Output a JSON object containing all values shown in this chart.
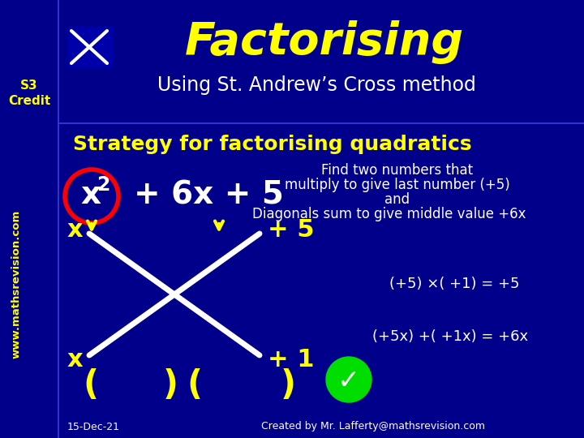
{
  "bg_color": "#00008B",
  "title_text": "Factorising",
  "title_color": "#FFFF00",
  "subtitle_text": "Using St. Andrew’s Cross method",
  "subtitle_color": "#FFFFFF",
  "s3_credit": "S3\nCredit",
  "s3_color": "#FFFF00",
  "watermark": "www.mathsrevision.com",
  "watermark_color": "#FFFF00",
  "strategy_text": "Strategy for factorising quadratics",
  "strategy_color": "#FFFF00",
  "find_line1": "Find two numbers that",
  "find_line2": "multiply to give last number (+5)",
  "find_line3": "and",
  "find_line4": "Diagonals sum to give middle value +6x",
  "find_color": "#FFFFFF",
  "row1_left": "x",
  "row1_right": "+ 5",
  "row2_left": "x",
  "row2_right": "+ 1",
  "row_color": "#FFFF00",
  "eq1": "(+5) ×( +1) = +5",
  "eq2": "(+5x) +( +1x) = +6x",
  "eq_color": "#FFFFFF",
  "paren1": "(",
  "paren2": ")",
  "paren3": "(",
  "paren4": ")",
  "bottom_color": "#FFFF00",
  "date_text": "15-Dec-21",
  "credit_text": "Created by Mr. Lafferty@mathsrevision.com",
  "footer_color": "#FFFFFF",
  "cross_color": "#FFFFFF",
  "circle_color": "#FF0000",
  "arrow_color": "#FFFF00",
  "check_color": "#00DD00",
  "divider_color": "#3333CC",
  "figw": 7.2,
  "figh": 5.4,
  "dpi": 100
}
